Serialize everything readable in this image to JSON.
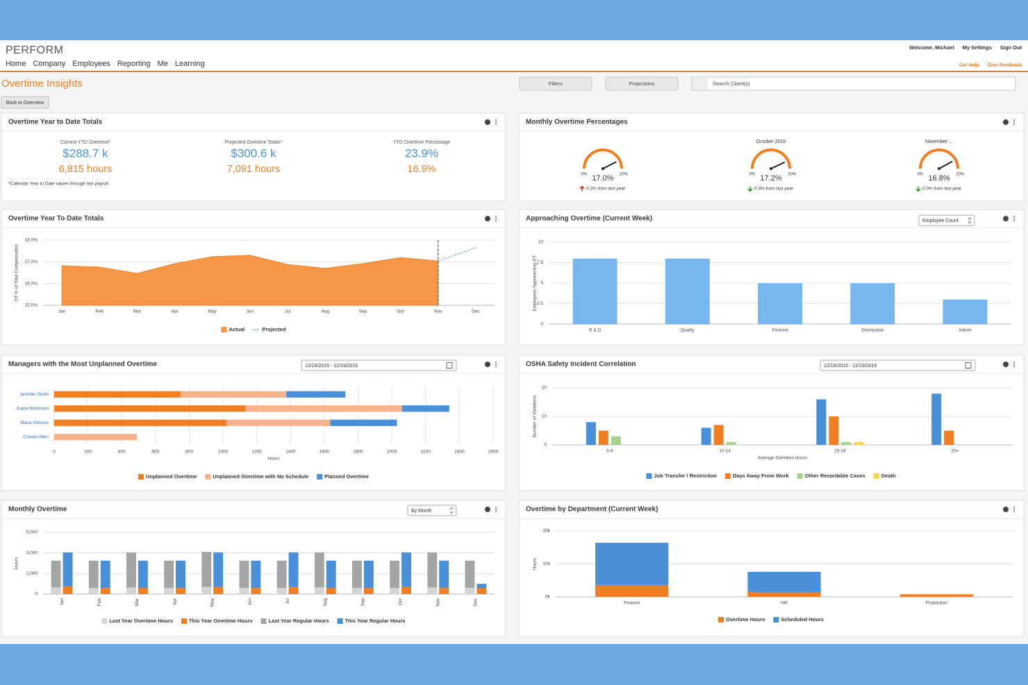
{
  "header": {
    "logo": "PERFORM",
    "nav": [
      "Home",
      "Company",
      "Employees",
      "Reporting",
      "Me",
      "Learning"
    ],
    "user_links": [
      "Welcome, Michael",
      "My Settings",
      "Sign Out"
    ],
    "help_links": [
      "Get Help",
      "Give Feedback"
    ],
    "page_title": "Overtime Insights",
    "buttons": [
      "Filters",
      "Projections"
    ],
    "search_placeholder": "Search Client(s)",
    "back_button": "Back to Overview"
  },
  "ytd_totals": {
    "title": "Overtime Year to Date Totals",
    "kpis": [
      {
        "label": "Current YTD Overtime*",
        "amount": "$288.7 k",
        "hours": "6,815 hours"
      },
      {
        "label": "Projected Overtime Totals*",
        "amount": "$300.6 k",
        "hours": "7,091 hours"
      },
      {
        "label": "YTD Overtime Percentage",
        "amount": "23.9%",
        "hours": "16.9%"
      }
    ],
    "note": "*Calendar Year to Date values through last payroll."
  },
  "gauges": {
    "title": "Monthly Overtime Percentages",
    "min": {
      "value": 0,
      "label": "0%"
    },
    "max": {
      "value": 20,
      "label": "20%"
    },
    "color": "#f07f23",
    "items": [
      {
        "value": 17.0,
        "value_label": "17.0%",
        "change": "0.2% from last year",
        "trend": "up"
      },
      {
        "title": "October 2016",
        "value": 17.2,
        "value_label": "17.2%",
        "change": "0.3% from last year",
        "trend": "down"
      },
      {
        "title": "November ...",
        "value": 16.8,
        "value_label": "16.8%",
        "change": "0.0% from last year",
        "trend": "down"
      }
    ]
  },
  "chart_data": [
    {
      "type": "area",
      "title": "Overtime Year To Date Totals",
      "ylabel": "OT % of Total Compensation",
      "categories": [
        "Jan",
        "Feb",
        "Mar",
        "Apr",
        "May",
        "Jun",
        "Jul",
        "Aug",
        "Sep",
        "Oct",
        "Nov",
        "Dec"
      ],
      "series": [
        {
          "name": "Actual",
          "color": "#f79646",
          "values": [
            16.82,
            16.76,
            16.47,
            16.92,
            17.24,
            17.3,
            16.88,
            16.7,
            16.92,
            17.2,
            17.04,
            null
          ]
        },
        {
          "name": "Projected",
          "color": "#4a90d9",
          "dashed": true,
          "values": [
            null,
            null,
            null,
            null,
            null,
            null,
            null,
            null,
            null,
            null,
            17.04,
            17.65
          ]
        }
      ],
      "ylim": [
        15,
        18
      ],
      "yticks": [
        {
          "value": 15,
          "label": "15.0%"
        },
        {
          "value": 16,
          "label": "16.0%"
        },
        {
          "value": 17,
          "label": "17.0%"
        },
        {
          "value": 18,
          "label": "18.0%"
        }
      ],
      "grid": true
    },
    {
      "type": "bar",
      "title": "Approaching Overtime (Current Week)",
      "dropdown": "Employee Count",
      "ylabel": "Employees Approaching OT",
      "categories": [
        "R & D",
        "Quality",
        "Finance",
        "Distribution",
        "Admin"
      ],
      "values": [
        8,
        8,
        5,
        5,
        3
      ],
      "color": "#7ab6ee",
      "ylim": [
        0,
        10
      ],
      "yticks": [
        0,
        2.5,
        5,
        7.5,
        10
      ],
      "grid": true
    },
    {
      "type": "bar",
      "horizontal": true,
      "stacked": true,
      "title": "Managers with the Most Unplanned Overtime",
      "date_range": "12/19/2015 - 12/19/2016",
      "xlabel": "Hours",
      "categories": [
        "Jennifer Smith",
        "Juana Robinson",
        "Maria Gilmore",
        "Connie Allen"
      ],
      "series": [
        {
          "name": "Unplanned Overtime",
          "color": "#f07f23",
          "values": [
            750,
            1135,
            1020,
            0
          ]
        },
        {
          "name": "Unplanned Overtime with No Schedule",
          "color": "#f6b28a",
          "values": [
            625,
            925,
            615,
            490
          ]
        },
        {
          "name": "Planned Overtime",
          "color": "#4a90d9",
          "values": [
            350,
            280,
            395,
            0
          ]
        }
      ],
      "xlim": [
        0,
        2600
      ],
      "xticks": [
        0,
        200,
        400,
        600,
        800,
        1000,
        1200,
        1400,
        1600,
        1800,
        2000,
        2200,
        2400,
        2600
      ],
      "grid": true
    },
    {
      "type": "bar",
      "title": "OSHA Safety Incident Correlation",
      "date_range": "12/19/2015 - 12/19/2016",
      "xlabel": "Average Overtime Hours",
      "ylabel": "Number of Violations",
      "categories": [
        "5-9",
        "10-14",
        "15-19",
        "20+"
      ],
      "series": [
        {
          "name": "Job Transfer / Restriction",
          "color": "#4a90d9",
          "values": [
            8,
            6,
            16,
            18
          ]
        },
        {
          "name": "Days Away From Work",
          "color": "#f07f23",
          "values": [
            5,
            7,
            10,
            5
          ]
        },
        {
          "name": "Other Recordable Cases",
          "color": "#a9d18e",
          "values": [
            3,
            1,
            1,
            0
          ]
        },
        {
          "name": "Death",
          "color": "#f8d44f",
          "values": [
            0,
            0,
            1,
            0
          ]
        }
      ],
      "ylim": [
        0,
        20
      ],
      "yticks": [
        0,
        10,
        20
      ],
      "grid": true
    },
    {
      "type": "bar",
      "stacked": true,
      "title": "Monthly Overtime",
      "dropdown": "By Month",
      "ylabel": "Hours",
      "categories": [
        "Jan",
        "Feb",
        "Mar",
        "Apr",
        "May",
        "Jun",
        "Jul",
        "Aug",
        "Sep",
        "Oct",
        "Nov",
        "Dec"
      ],
      "series": [
        {
          "name": "Last Year Overtime Hours",
          "color": "#d4d4d4",
          "stack": 0,
          "values": [
            650,
            600,
            650,
            600,
            700,
            600,
            600,
            650,
            600,
            600,
            650,
            600
          ]
        },
        {
          "name": "This Year Overtime Hours",
          "color": "#f07f23",
          "stack": 1,
          "values": [
            750,
            600,
            600,
            600,
            700,
            600,
            700,
            600,
            600,
            700,
            600,
            550
          ]
        },
        {
          "name": "Last Year Regular Hours",
          "color": "#a5a5a5",
          "stack": 0,
          "values": [
            2600,
            2650,
            3400,
            2650,
            3400,
            2650,
            2650,
            3400,
            2650,
            2650,
            3400,
            2650
          ]
        },
        {
          "name": "This Year Regular Hours",
          "color": "#4a90d9",
          "stack": 1,
          "values": [
            3300,
            2650,
            2650,
            2650,
            3350,
            2650,
            3350,
            2650,
            2650,
            3350,
            2650,
            450
          ]
        }
      ],
      "ylim": [
        0,
        6000
      ],
      "yticks": [
        0,
        {
          "value": 2000,
          "label": "2,000"
        },
        {
          "value": 4000,
          "label": "4,000"
        },
        {
          "value": 6000,
          "label": "6,000"
        }
      ],
      "grid": true
    },
    {
      "type": "bar",
      "stacked": true,
      "title": "Overtime by Department (Current Week)",
      "ylabel": "Hours",
      "categories": [
        "Finance",
        "HR",
        "Production"
      ],
      "series": [
        {
          "name": "Overtime Hours",
          "color": "#f07f23",
          "values": [
            3600,
            1500,
            800
          ]
        },
        {
          "name": "Scheduled Hours",
          "color": "#4a90d9",
          "values": [
            12800,
            6100,
            0
          ]
        }
      ],
      "ylim": [
        0,
        20000
      ],
      "yticks": [
        {
          "value": 0,
          "label": "0k"
        },
        {
          "value": 10000,
          "label": "10k"
        },
        {
          "value": 20000,
          "label": "20k"
        }
      ],
      "grid": true
    }
  ]
}
